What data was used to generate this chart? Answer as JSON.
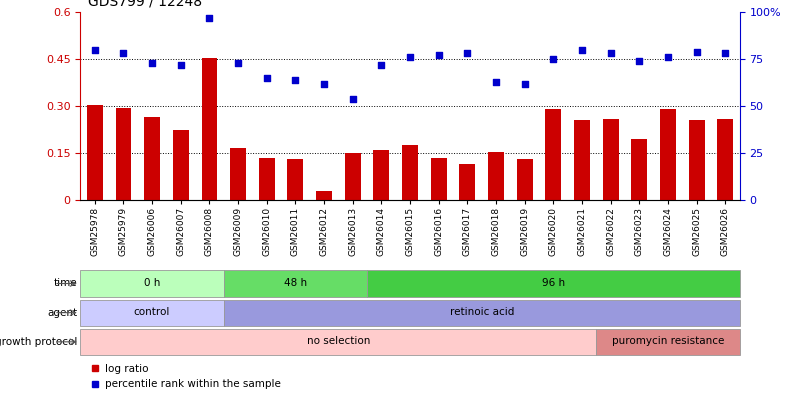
{
  "title": "GDS799 / 12248",
  "samples": [
    "GSM25978",
    "GSM25979",
    "GSM26006",
    "GSM26007",
    "GSM26008",
    "GSM26009",
    "GSM26010",
    "GSM26011",
    "GSM26012",
    "GSM26013",
    "GSM26014",
    "GSM26015",
    "GSM26016",
    "GSM26017",
    "GSM26018",
    "GSM26019",
    "GSM26020",
    "GSM26021",
    "GSM26022",
    "GSM26023",
    "GSM26024",
    "GSM26025",
    "GSM26026"
  ],
  "log_ratio": [
    0.305,
    0.295,
    0.265,
    0.225,
    0.455,
    0.165,
    0.135,
    0.13,
    0.03,
    0.15,
    0.16,
    0.175,
    0.135,
    0.115,
    0.155,
    0.13,
    0.29,
    0.255,
    0.26,
    0.195,
    0.29,
    0.255,
    0.26
  ],
  "percentile_rank": [
    80,
    78,
    73,
    72,
    97,
    73,
    65,
    64,
    62,
    54,
    72,
    76,
    77,
    78,
    63,
    62,
    75,
    80,
    78,
    74,
    76,
    79,
    78
  ],
  "bar_color": "#cc0000",
  "dot_color": "#0000cc",
  "ylim_left": [
    0,
    0.6
  ],
  "ylim_right": [
    0,
    100
  ],
  "yticks_left": [
    0,
    0.15,
    0.3,
    0.45,
    0.6
  ],
  "ytick_labels_left": [
    "0",
    "0.15",
    "0.30",
    "0.45",
    "0.6"
  ],
  "yticks_right": [
    0,
    25,
    50,
    75,
    100
  ],
  "ytick_labels_right": [
    "0",
    "25",
    "50",
    "75",
    "100%"
  ],
  "hlines": [
    0.15,
    0.3,
    0.45
  ],
  "time_groups": [
    {
      "label": "0 h",
      "start": 0,
      "end": 5,
      "color": "#bbffbb"
    },
    {
      "label": "48 h",
      "start": 5,
      "end": 10,
      "color": "#66dd66"
    },
    {
      "label": "96 h",
      "start": 10,
      "end": 23,
      "color": "#44cc44"
    }
  ],
  "agent_groups": [
    {
      "label": "control",
      "start": 0,
      "end": 5,
      "color": "#ccccff"
    },
    {
      "label": "retinoic acid",
      "start": 5,
      "end": 23,
      "color": "#9999dd"
    }
  ],
  "growth_groups": [
    {
      "label": "no selection",
      "start": 0,
      "end": 18,
      "color": "#ffcccc"
    },
    {
      "label": "puromycin resistance",
      "start": 18,
      "end": 23,
      "color": "#dd8888"
    }
  ],
  "bg_color": "#ffffff"
}
